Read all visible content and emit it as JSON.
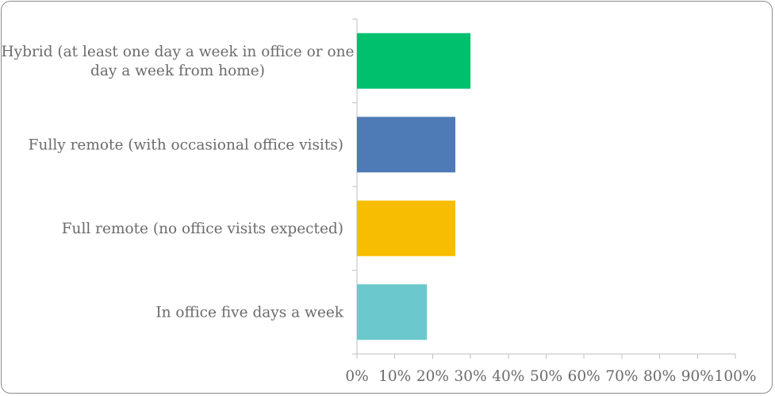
{
  "chart_data": {
    "type": "bar",
    "orientation": "horizontal",
    "categories": [
      [
        "Hybrid (at least one day a week in office or one",
        "day a week from home)"
      ],
      [
        "Fully remote (with occasional office visits)"
      ],
      [
        "Full remote (no office visits expected)"
      ],
      [
        "In office five days a week"
      ]
    ],
    "values": [
      30,
      26,
      26,
      18.5
    ],
    "colors": [
      "#00c06e",
      "#4e7ab5",
      "#f7bd00",
      "#6bc8cc"
    ],
    "xlim": [
      0,
      100
    ],
    "xticks": [
      0,
      10,
      20,
      30,
      40,
      50,
      60,
      70,
      80,
      90,
      100
    ],
    "xtick_labels": [
      "0%",
      "10%",
      "20%",
      "30%",
      "40%",
      "50%",
      "60%",
      "70%",
      "80%",
      "90%",
      "100%"
    ],
    "grid": false,
    "legend": "none"
  }
}
